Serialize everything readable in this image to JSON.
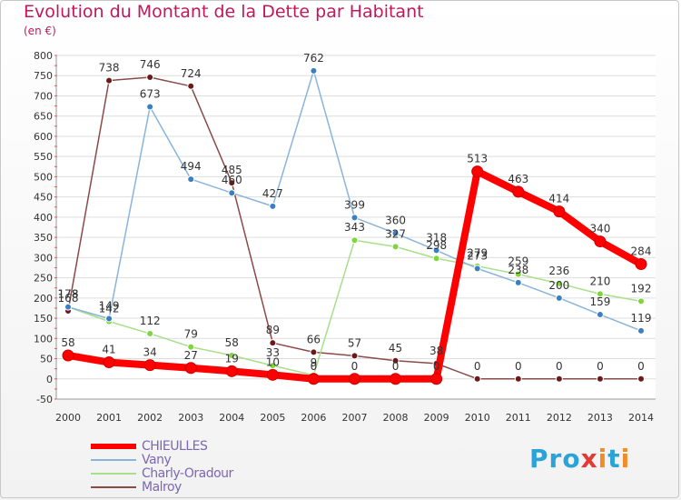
{
  "chart_data": {
    "type": "line",
    "title": "Evolution du Montant de la Dette par Habitant",
    "subtitle": "(en €)",
    "xlabel": "",
    "ylabel": "",
    "ylim": [
      -50,
      800
    ],
    "y_ticks": [
      -50,
      0,
      50,
      100,
      150,
      200,
      250,
      300,
      350,
      400,
      450,
      500,
      550,
      600,
      650,
      700,
      750,
      800
    ],
    "categories": [
      "2000",
      "2001",
      "2002",
      "2003",
      "2004",
      "2005",
      "2006",
      "2007",
      "2008",
      "2009",
      "2010",
      "2011",
      "2012",
      "2013",
      "2014"
    ],
    "series": [
      {
        "name": "CHIEULLES",
        "color": "#ff0000",
        "line_color": "#ff0000",
        "thick": true,
        "values": [
          58,
          41,
          34,
          27,
          19,
          10,
          0,
          0,
          0,
          0,
          513,
          463,
          414,
          340,
          284
        ]
      },
      {
        "name": "Vany",
        "color": "#3a7fc1",
        "line_color": "#8ab4d9",
        "thick": false,
        "values": [
          178,
          149,
          673,
          494,
          460,
          427,
          762,
          399,
          360,
          318,
          273,
          238,
          200,
          159,
          119
        ]
      },
      {
        "name": "Charly-Oradour",
        "color": "#7ed63c",
        "line_color": "#a7e08a",
        "thick": false,
        "values": [
          178,
          142,
          112,
          79,
          58,
          33,
          9,
          343,
          327,
          298,
          279,
          259,
          236,
          210,
          192
        ]
      },
      {
        "name": "Malroy",
        "color": "#6b1a1a",
        "line_color": "#8a4a4a",
        "thick": false,
        "values": [
          168,
          738,
          746,
          724,
          485,
          89,
          66,
          57,
          45,
          38,
          0,
          0,
          0,
          0,
          0
        ]
      }
    ],
    "data_labels": [
      {
        "series": 0,
        "labels": [
          "58",
          "41",
          "34",
          "27",
          "19",
          "10",
          "0",
          "0",
          "0",
          "0",
          "513",
          "463",
          "414",
          "340",
          "284"
        ]
      },
      {
        "series": 1,
        "labels": [
          "178",
          "149",
          "673",
          "494",
          "460",
          "427",
          "762",
          "399",
          "360",
          "318",
          "273",
          "238",
          "200",
          "159",
          "119"
        ]
      },
      {
        "series": 2,
        "labels": [
          "178",
          "142",
          "112",
          "79",
          "58",
          "33",
          "9",
          "343",
          "327",
          "298",
          "279",
          "259",
          "236",
          "210",
          "192"
        ]
      },
      {
        "series": 3,
        "labels": [
          "168",
          "738",
          "746",
          "724",
          "485",
          "89",
          "66",
          "57",
          "45",
          "38",
          "0",
          "0",
          "0",
          "0",
          "0"
        ]
      }
    ]
  },
  "brand": {
    "p1": "Pro",
    "x": "x",
    "p2": "i",
    "t": "t",
    "p3": "i"
  }
}
